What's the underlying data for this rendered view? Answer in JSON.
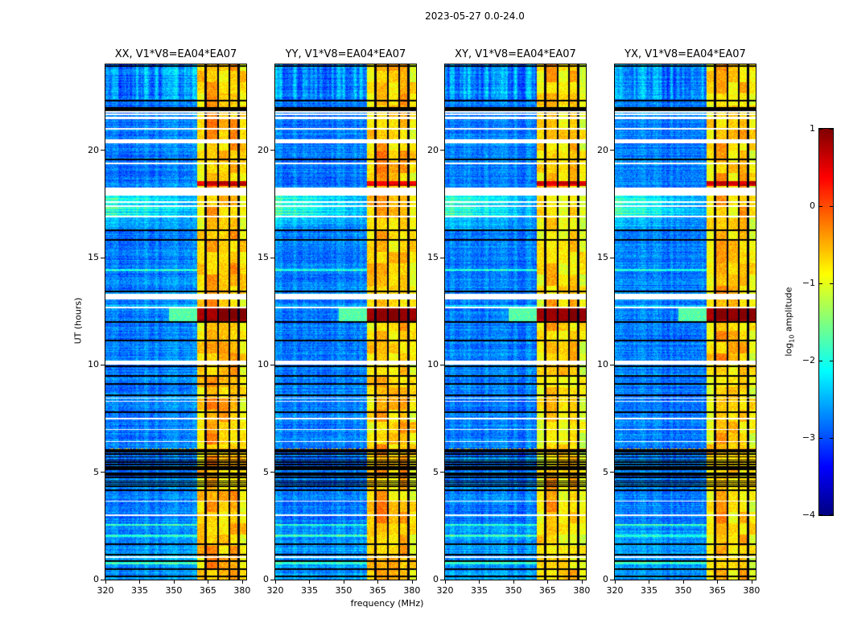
{
  "title": "2023-05-27 0.0-24.0",
  "chart_data": {
    "type": "heatmap",
    "title": "2023-05-27 0.0-24.0",
    "xlabel": "frequency (MHz)",
    "ylabel": "UT (hours)",
    "x_range": [
      320,
      381.8
    ],
    "y_range": [
      0,
      24
    ],
    "x_ticks": [
      320,
      335,
      350,
      365,
      380
    ],
    "y_ticks": [
      0,
      5,
      10,
      15,
      20
    ],
    "colormap": "jet",
    "grid": false,
    "colorbar": {
      "label_prefix": "log",
      "label_sub": "10",
      "label_suffix": " amplitude",
      "ticks": [
        1,
        0,
        -1,
        -2,
        -3,
        -4
      ],
      "range": [
        -4,
        1
      ]
    },
    "panels": [
      {
        "key": "xx",
        "title": "XX, V1*V8=EA04*EA07",
        "rfi_bias": 0.05,
        "seed": 11
      },
      {
        "key": "yy",
        "title": "YY, V1*V8=EA04*EA07",
        "rfi_bias": 0.03,
        "seed": 22
      },
      {
        "key": "xy",
        "title": "XY, V1*V8=EA04*EA07",
        "rfi_bias": -0.08,
        "seed": 33
      },
      {
        "key": "yx",
        "title": "YX, V1*V8=EA04*EA07",
        "rfi_bias": -0.03,
        "seed": 44
      }
    ],
    "features": {
      "background_level": -2.75,
      "rfi_band": {
        "f_start": 360.2,
        "f_end": 381.8,
        "subbands": [
          [
            360.2,
            363.9,
            -0.75
          ],
          [
            363.9,
            369.4,
            -0.5
          ],
          [
            369.4,
            374.4,
            -0.68
          ],
          [
            374.4,
            378.5,
            -0.6
          ],
          [
            378.5,
            381.8,
            -0.85
          ]
        ],
        "flagged_channels": [
          363.9,
          369.4,
          374.4,
          378.5
        ]
      },
      "events": [
        {
          "t0": 11.98,
          "t1": 12.62,
          "boost": 1.15
        },
        {
          "t0": 18.35,
          "t1": 18.58,
          "boost": 0.75
        }
      ],
      "cyan_blob": {
        "t0": 11.95,
        "t1": 12.62,
        "f0": 348,
        "f1": 360.2,
        "level": -1.7
      },
      "precursor_streaks": {
        "t0": 12.62,
        "t1": 12.82
      },
      "enhanced_bands": [
        {
          "t0": 16.95,
          "t1": 17.95,
          "strength": 0.85
        },
        {
          "t0": 16.3,
          "t1": 16.95,
          "strength": 0.3
        }
      ],
      "streak_region": {
        "t0": 22.4,
        "t1": 24,
        "amp": 0.5
      },
      "base_streak_amp": 0.2,
      "dense_flag_cluster": {
        "t0": 4.0,
        "t1": 5.9,
        "density": 0.45
      },
      "white_gaps": [
        [
          21.45,
          21.58
        ],
        [
          21.62,
          21.72
        ],
        [
          21.76,
          21.84
        ],
        [
          20.95,
          21.02
        ],
        [
          20.32,
          20.5
        ],
        [
          19.35,
          19.42
        ],
        [
          17.88,
          18.28
        ],
        [
          17.55,
          17.62
        ],
        [
          17.36,
          17.42
        ],
        [
          16.88,
          16.94
        ],
        [
          13.05,
          13.3
        ],
        [
          12.64,
          12.7
        ],
        [
          10.02,
          10.2
        ],
        [
          8.42,
          8.48
        ],
        [
          8.27,
          8.33
        ],
        [
          7.47,
          7.53
        ],
        [
          6.97,
          7.03
        ],
        [
          6.4,
          6.46
        ],
        [
          3.62,
          3.68
        ],
        [
          2.96,
          3.02
        ],
        [
          1.02,
          1.08
        ]
      ],
      "black_lines": [
        [
          23.92,
          0.05
        ],
        [
          22.3,
          0.04
        ],
        [
          21.92,
          0.08
        ],
        [
          19.58,
          0.05
        ],
        [
          16.27,
          0.05
        ],
        [
          15.82,
          0.04
        ],
        [
          13.42,
          0.04
        ],
        [
          12.0,
          0.04
        ],
        [
          11.15,
          0.04
        ],
        [
          9.94,
          0.05
        ],
        [
          9.5,
          0.04
        ],
        [
          9.1,
          0.04
        ],
        [
          8.6,
          0.04
        ],
        [
          7.8,
          0.04
        ],
        [
          6.0,
          0.06
        ],
        [
          1.65,
          0.04
        ],
        [
          1.16,
          0.04
        ],
        [
          0.86,
          0.04
        ],
        [
          0.49,
          0.04
        ],
        [
          0.15,
          0.05
        ]
      ],
      "hot_rows": [
        6.08
      ],
      "cyan_rows": [
        14.42,
        2.55,
        2.05,
        0.78
      ]
    }
  }
}
